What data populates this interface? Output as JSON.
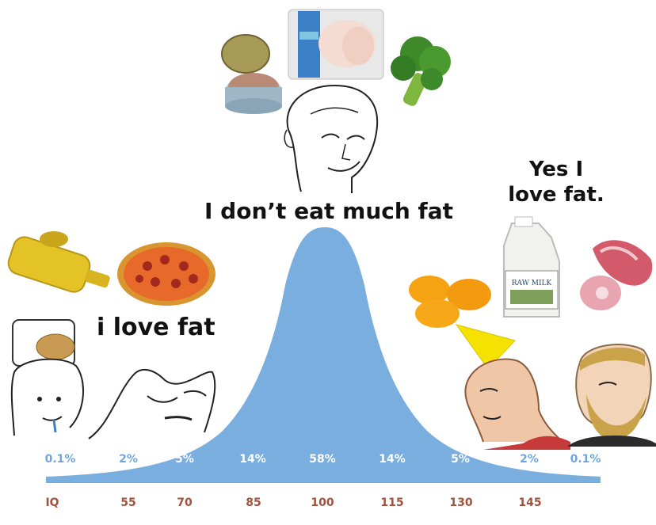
{
  "captions": {
    "left": "i love fat",
    "middle": "I don’t eat much fat",
    "right": "Yes I love fat."
  },
  "percentages": [
    "0.1%",
    "2%",
    "5%",
    "14%",
    "58%",
    "14%",
    "5%",
    "2%",
    "0.1%"
  ],
  "iq_axis": {
    "label": "IQ",
    "ticks": [
      "55",
      "70",
      "85",
      "100",
      "115",
      "130",
      "145"
    ]
  },
  "colors": {
    "curve": "#7aaedf",
    "outer_percent": "#6ea6dc",
    "iq_text": "#a0523d"
  },
  "images": {
    "left": [
      "oil-bottle",
      "pizza",
      "potato-helmet-wojak",
      "crying-wojak"
    ],
    "middle": [
      "canned-tuna",
      "chicken-breast-pack",
      "broccoli",
      "wojak-smirk"
    ],
    "right": [
      "egg-yolks",
      "raw-milk-jug",
      "raw-meat",
      "chad-yellow-hair",
      "yes-chad"
    ]
  },
  "milk_label": "RAW MILK"
}
